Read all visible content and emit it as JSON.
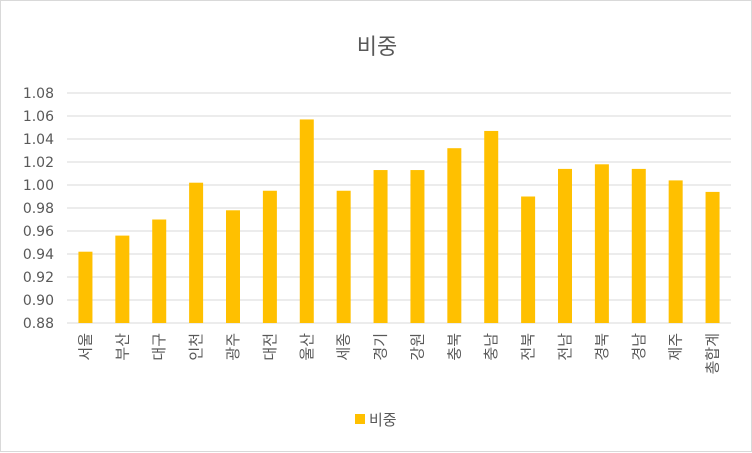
{
  "chart_data": {
    "type": "bar",
    "title": "비중",
    "categories": [
      "서울",
      "부산",
      "대구",
      "인천",
      "광주",
      "대전",
      "울산",
      "세종",
      "경기",
      "강원",
      "충북",
      "충남",
      "전북",
      "전남",
      "경북",
      "경남",
      "제주",
      "총합계"
    ],
    "series": [
      {
        "name": "비중",
        "color": "#ffc000",
        "values": [
          0.942,
          0.956,
          0.97,
          1.002,
          0.978,
          0.995,
          1.057,
          0.995,
          1.013,
          1.013,
          1.032,
          1.047,
          0.99,
          1.014,
          1.018,
          1.014,
          1.004,
          0.994
        ]
      }
    ],
    "ylim": [
      0.88,
      1.08
    ],
    "yticks": [
      "0.88",
      "0.90",
      "0.92",
      "0.94",
      "0.96",
      "0.98",
      "1.00",
      "1.02",
      "1.04",
      "1.06",
      "1.08"
    ],
    "grid": true,
    "legend": "bottom"
  }
}
